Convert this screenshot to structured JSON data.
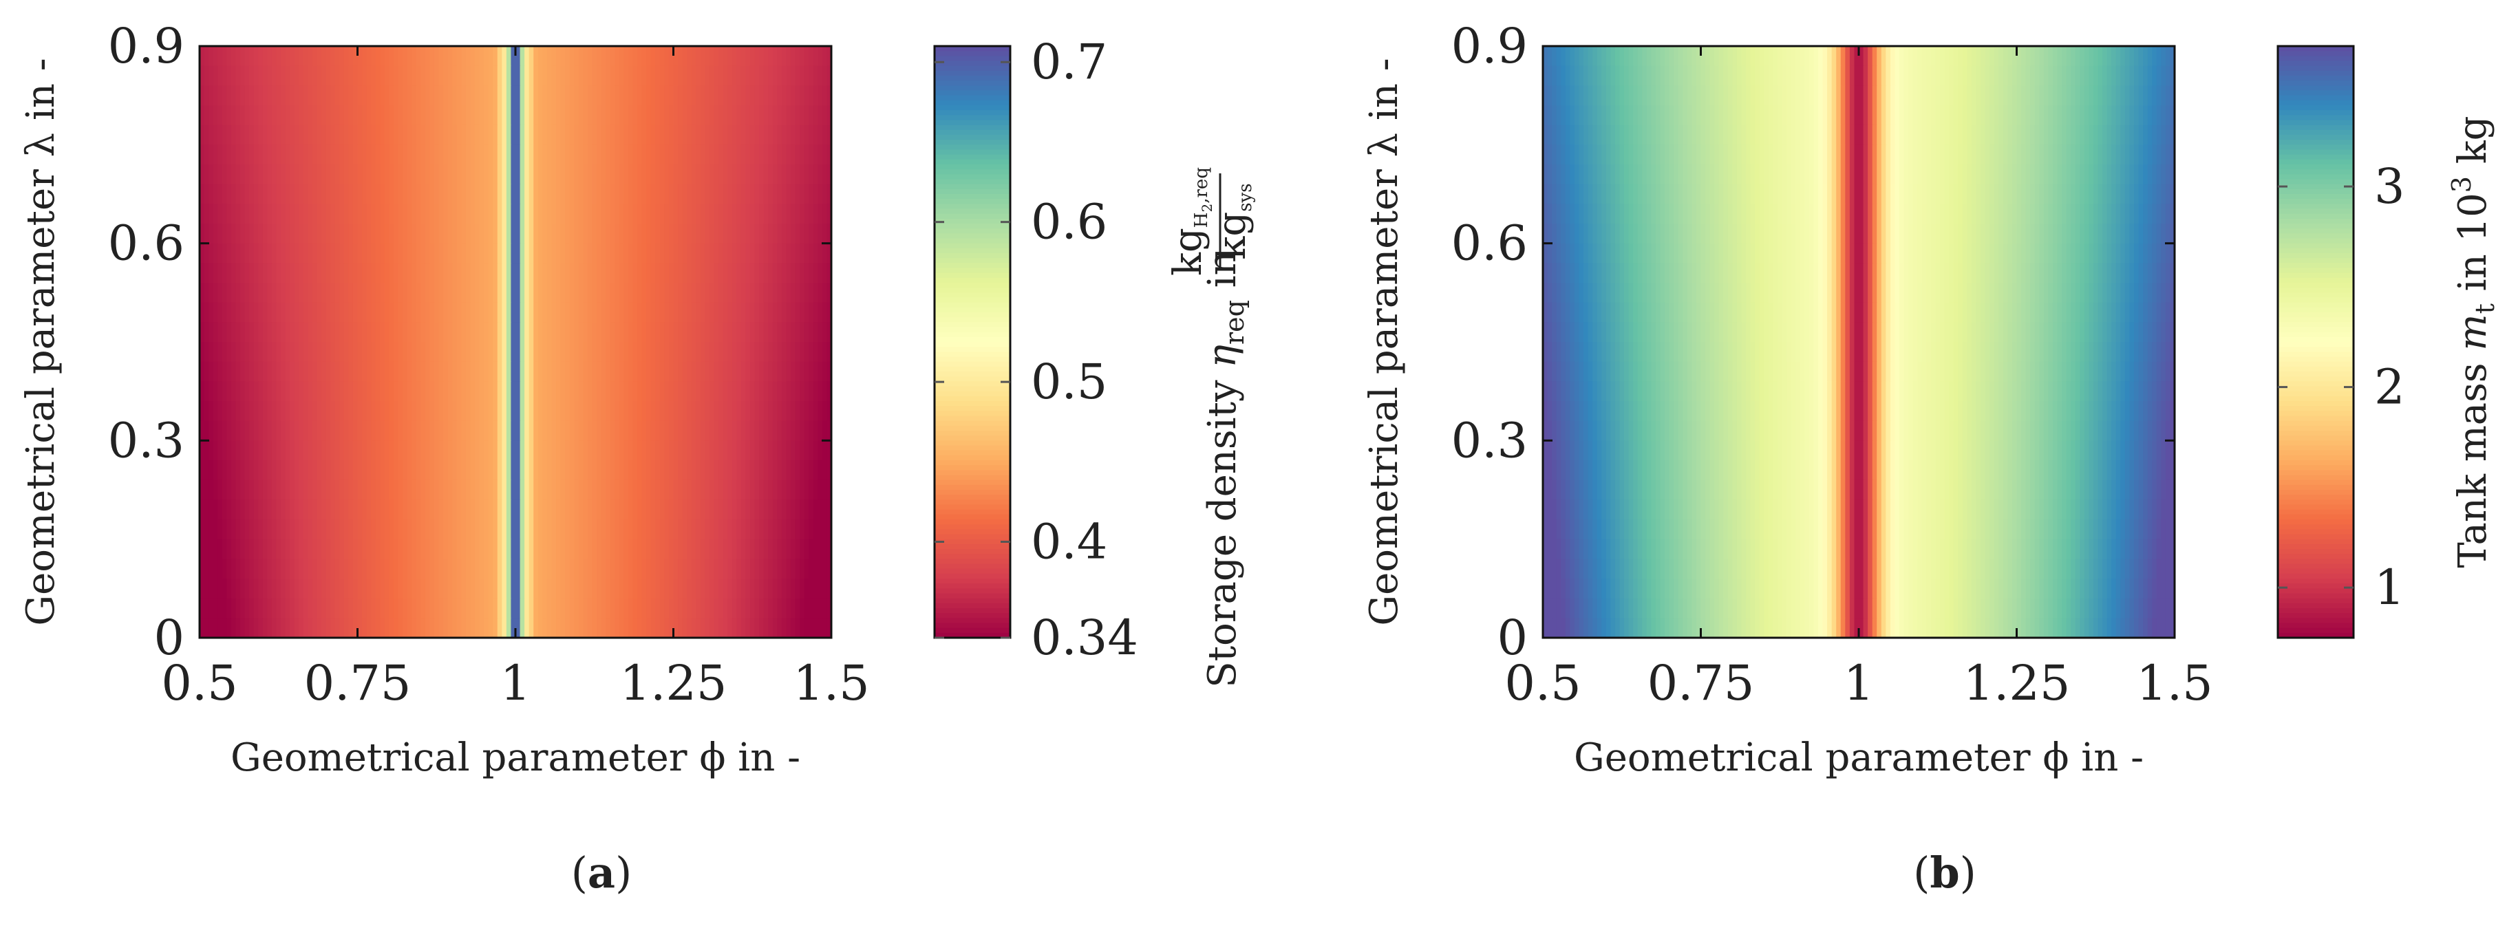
{
  "chart_data": [
    {
      "id": "a",
      "type": "heatmap",
      "caption_letter": "a",
      "xlabel": "Geometrical parameter ϕ in -",
      "ylabel": "Geometrical parameter λ in -",
      "x_range": [
        0.5,
        1.5
      ],
      "y_range": [
        0,
        0.9
      ],
      "x_ticks": [
        "0.5",
        "0.75",
        "1",
        "1.25",
        "1.5"
      ],
      "y_ticks": [
        "0",
        "0.3",
        "0.6",
        "0.9"
      ],
      "colorbar": {
        "label": "Storage density η_req in kg_H2,req / kg_sys",
        "label_main": "Storage density ",
        "label_symbol": "η",
        "label_sub": "req",
        "label_in": " in ",
        "frac_num": "kg",
        "frac_num_sub": "H",
        "frac_num_sub2": "2",
        "frac_num_sub3": ",req",
        "frac_den": "kg",
        "frac_den_sub": "sys",
        "range": [
          0.34,
          0.71
        ],
        "ticks": [
          "0.34",
          "0.4",
          "0.5",
          "0.6",
          "0.7"
        ]
      },
      "description_values": {
        "min": 0.34,
        "max": 0.71,
        "peak_at_phi": 1.0
      }
    },
    {
      "id": "b",
      "type": "heatmap",
      "caption_letter": "b",
      "xlabel": "Geometrical parameter ϕ in -",
      "ylabel": "Geometrical parameter λ in -",
      "x_range": [
        0.5,
        1.5
      ],
      "y_range": [
        0,
        0.9
      ],
      "x_ticks": [
        "0.5",
        "0.75",
        "1",
        "1.25",
        "1.5"
      ],
      "y_ticks": [
        "0",
        "0.3",
        "0.6",
        "0.9"
      ],
      "colorbar": {
        "label": "Tank mass m_t in 10^3 kg",
        "label_main": "Tank mass ",
        "label_symbol": "m",
        "label_sub": "t",
        "label_in": " in 10",
        "label_sup": "3",
        "label_unit": " kg",
        "range": [
          0.75,
          3.7
        ],
        "ticks": [
          "1",
          "2",
          "3"
        ]
      },
      "description_values": {
        "min": 0.75,
        "max": 3.7,
        "trough_at_phi": 1.0
      }
    }
  ],
  "colors": {
    "c0": "#9e0142",
    "c1": "#d53e4f",
    "c2": "#f46d43",
    "c3": "#fdae61",
    "c4": "#fee08b",
    "c5": "#ffffbf",
    "c6": "#e6f598",
    "c7": "#abdda4",
    "c8": "#66c2a5",
    "c9": "#3288bd",
    "c10": "#5e4fa2"
  }
}
